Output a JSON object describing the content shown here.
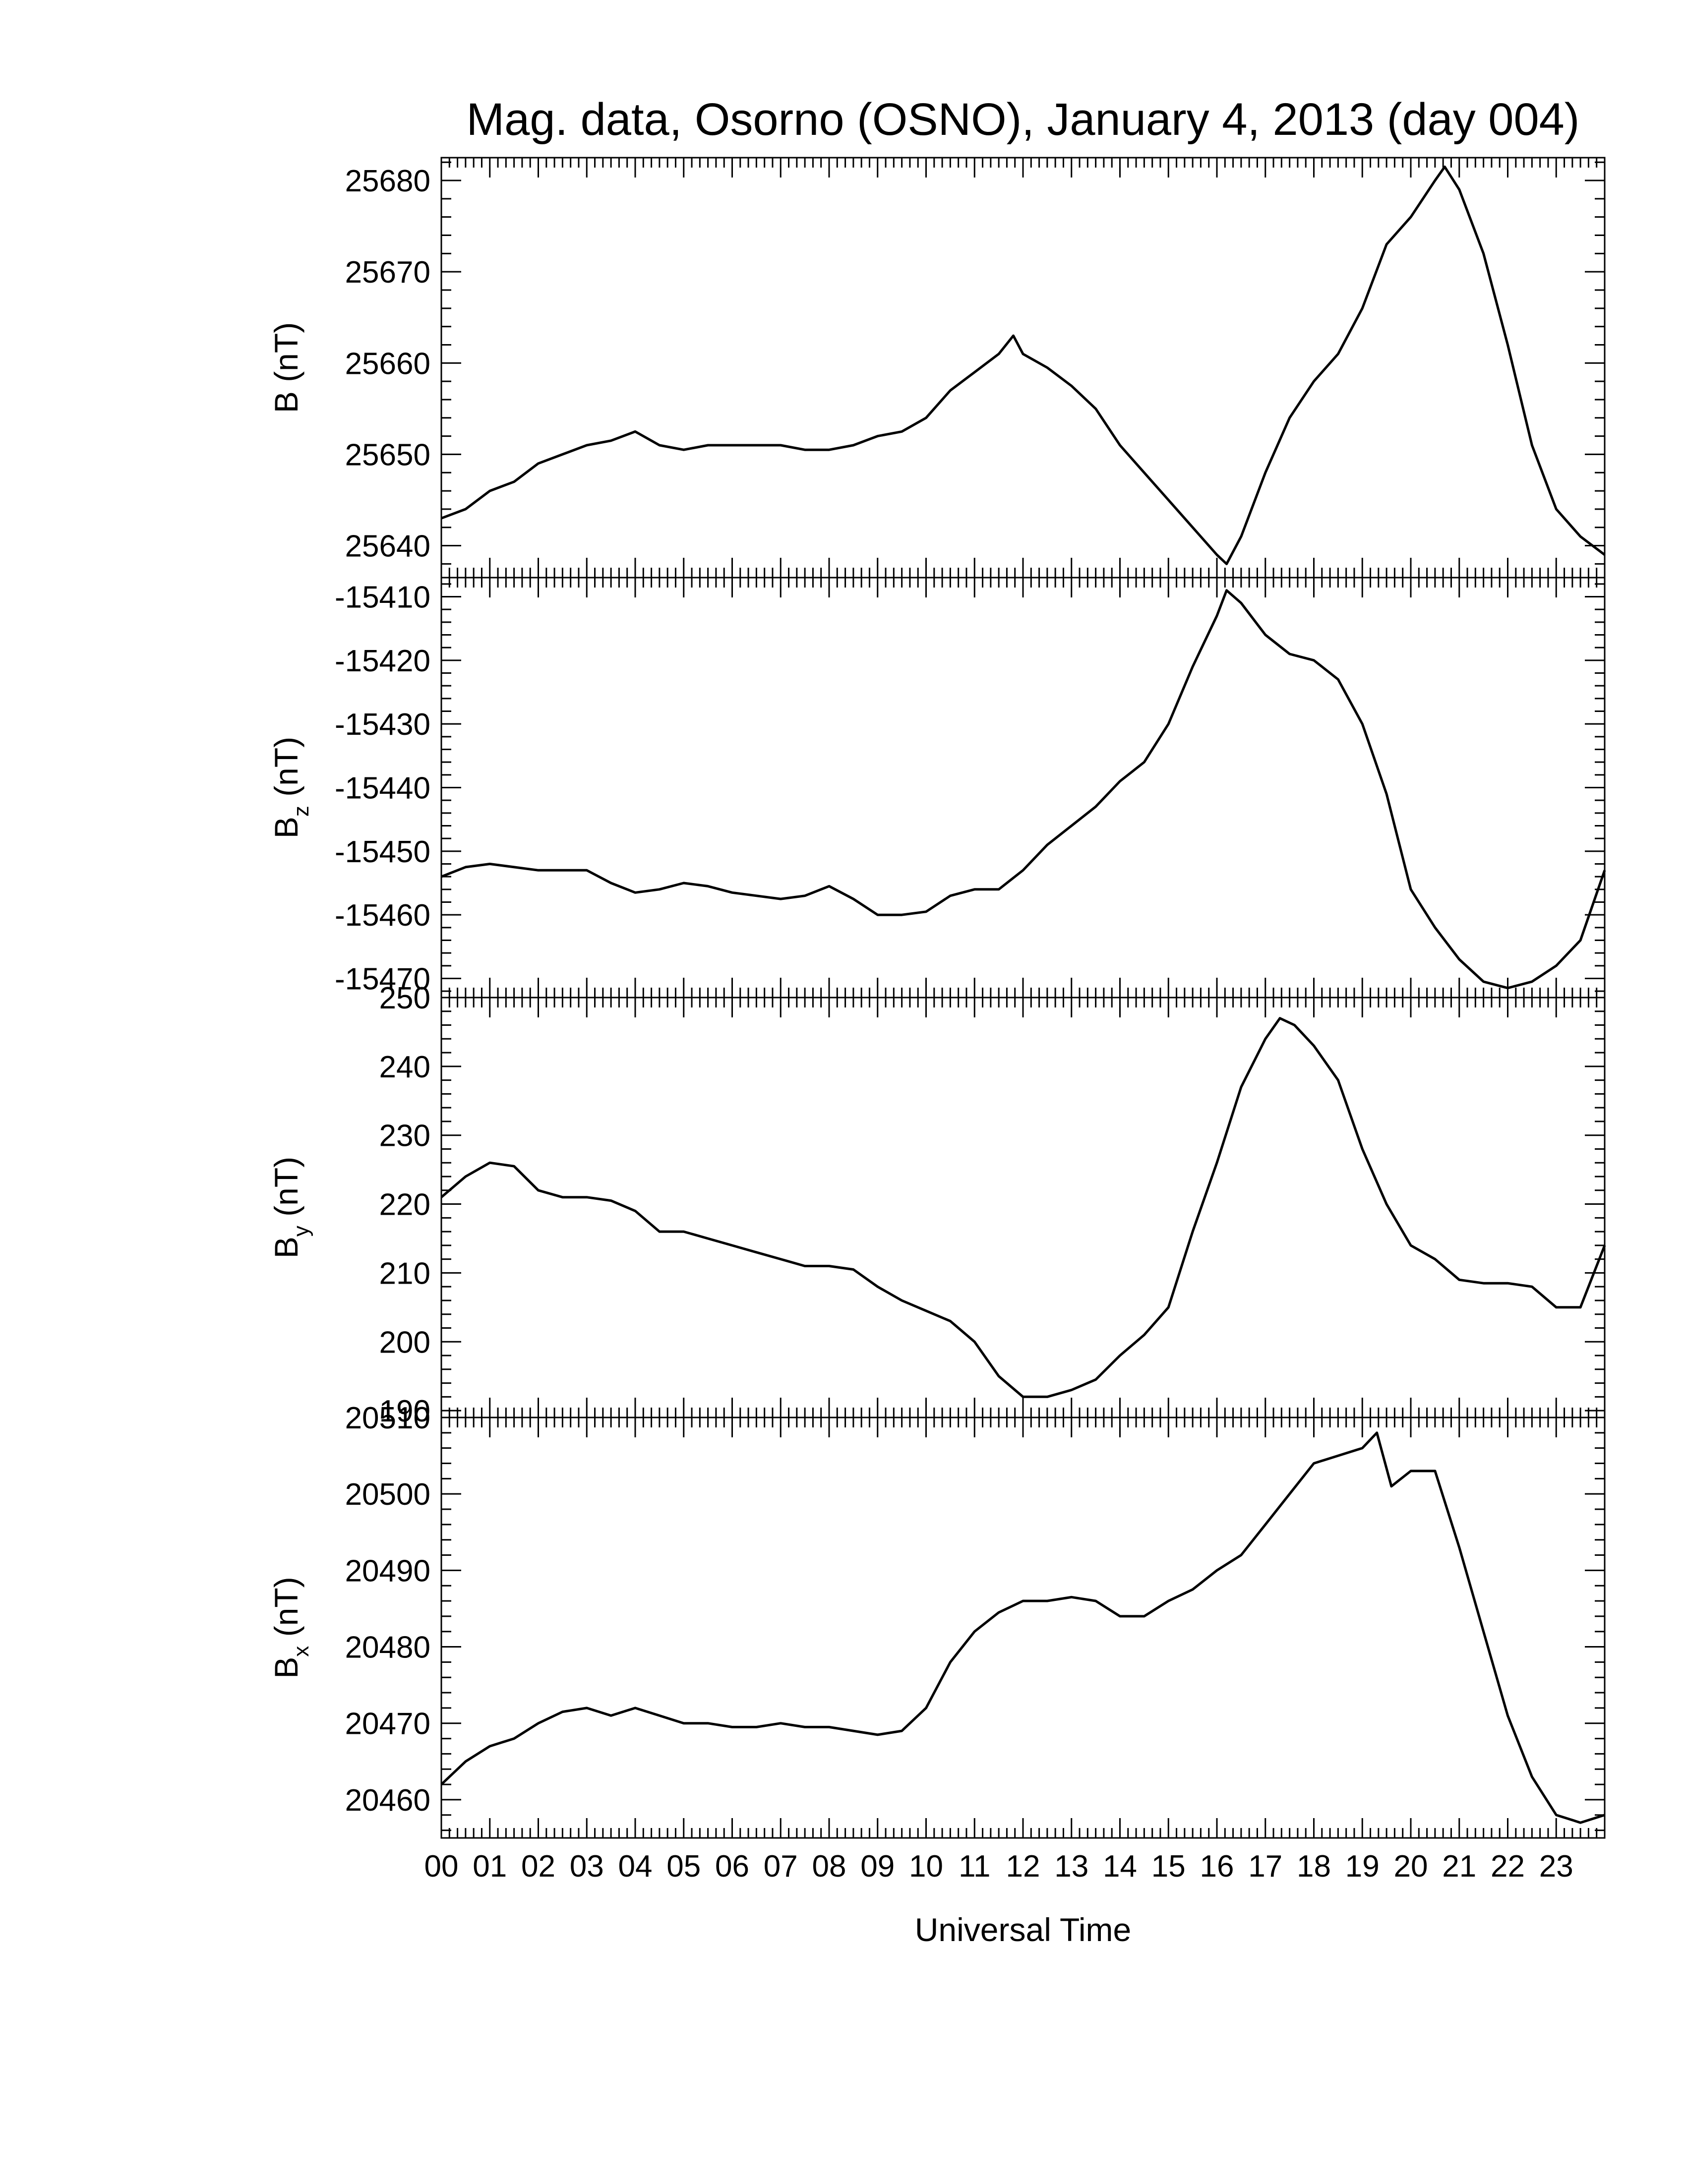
{
  "chart_data": {
    "type": "line",
    "title": "Mag. data, Osorno (OSNO), January 4, 2013 (day 004)",
    "xlabel": "Universal Time",
    "x_tick_labels": [
      "00",
      "01",
      "02",
      "03",
      "04",
      "05",
      "06",
      "07",
      "08",
      "09",
      "10",
      "11",
      "12",
      "13",
      "14",
      "15",
      "16",
      "17",
      "18",
      "19",
      "20",
      "21",
      "22",
      "23"
    ],
    "xlim": [
      0,
      24
    ],
    "line_color": "#000000",
    "grid": false,
    "panels": [
      {
        "ylabel": {
          "main": "B",
          "sub": "",
          "unit": "(nT)"
        },
        "ylim": [
          25636.5,
          25682.5
        ],
        "yticks": [
          25640,
          25650,
          25660,
          25670,
          25680
        ],
        "ytick_labels": [
          "25640",
          "25650",
          "25660",
          "25670",
          "25680"
        ],
        "series": [
          {
            "x": [
              0,
              0.5,
              1,
              1.5,
              2,
              2.5,
              3,
              3.5,
              4,
              4.5,
              5,
              5.5,
              6,
              6.5,
              7,
              7.5,
              8,
              8.5,
              9,
              9.5,
              10,
              10.5,
              11,
              11.5,
              11.8,
              12,
              12.5,
              13,
              13.5,
              14,
              14.5,
              15,
              15.5,
              16,
              16.2,
              16.5,
              17,
              17.5,
              18,
              18.5,
              19,
              19.5,
              20,
              20.5,
              20.7,
              21,
              21.5,
              22,
              22.5,
              23,
              23.5,
              24
            ],
            "y": [
              25643,
              25644,
              25646,
              25647,
              25649,
              25650,
              25651,
              25651.5,
              25652.5,
              25651,
              25650.5,
              25651,
              25651,
              25651,
              25651,
              25650.5,
              25650.5,
              25651,
              25652,
              25652.5,
              25654,
              25657,
              25659,
              25661,
              25663,
              25661,
              25659.5,
              25657.5,
              25655,
              25651,
              25648,
              25645,
              25642,
              25639,
              25638,
              25641,
              25648,
              25654,
              25658,
              25661,
              25666,
              25673,
              25676,
              25680,
              25681.5,
              25679,
              25672,
              25662,
              25651,
              25644,
              25641,
              25639
            ]
          }
        ]
      },
      {
        "ylabel": {
          "main": "B",
          "sub": "z",
          "unit": "(nT)"
        },
        "ylim": [
          -15473,
          -15407
        ],
        "yticks": [
          -15470,
          -15460,
          -15450,
          -15440,
          -15430,
          -15420,
          -15410
        ],
        "ytick_labels": [
          "-15470",
          "-15460",
          "-15450",
          "-15440",
          "-15430",
          "-15420",
          "-15410"
        ],
        "series": [
          {
            "x": [
              0,
              0.5,
              1,
              1.5,
              2,
              2.5,
              3,
              3.5,
              4,
              4.5,
              5,
              5.5,
              6,
              6.5,
              7,
              7.5,
              8,
              8.5,
              9,
              9.5,
              10,
              10.5,
              11,
              11.5,
              12,
              12.5,
              13,
              13.5,
              14,
              14.5,
              15,
              15.5,
              16,
              16.2,
              16.5,
              17,
              17.5,
              18,
              18.5,
              19,
              19.5,
              20,
              20.5,
              21,
              21.5,
              22,
              22.5,
              23,
              23.5,
              24
            ],
            "y": [
              -15454,
              -15452.5,
              -15452,
              -15452.5,
              -15453,
              -15453,
              -15453,
              -15455,
              -15456.5,
              -15456,
              -15455,
              -15455.5,
              -15456.5,
              -15457,
              -15457.5,
              -15457,
              -15455.5,
              -15457.5,
              -15460,
              -15460,
              -15459.5,
              -15457,
              -15456,
              -15456,
              -15453,
              -15449,
              -15446,
              -15443,
              -15439,
              -15436,
              -15430,
              -15421,
              -15413,
              -15409,
              -15411,
              -15416,
              -15419,
              -15420,
              -15423,
              -15430,
              -15441,
              -15456,
              -15462,
              -15467,
              -15470.5,
              -15471.5,
              -15470.5,
              -15468,
              -15464,
              -15453
            ]
          }
        ]
      },
      {
        "ylabel": {
          "main": "B",
          "sub": "y",
          "unit": "(nT)"
        },
        "ylim": [
          189,
          250
        ],
        "yticks": [
          190,
          200,
          210,
          220,
          230,
          240,
          250
        ],
        "ytick_labels": [
          "190",
          "200",
          "210",
          "220",
          "230",
          "240",
          "250"
        ],
        "series": [
          {
            "x": [
              0,
              0.5,
              1,
              1.5,
              2,
              2.5,
              3,
              3.5,
              4,
              4.5,
              5,
              5.5,
              6,
              6.5,
              7,
              7.5,
              8,
              8.5,
              9,
              9.5,
              10,
              10.5,
              11,
              11.5,
              12,
              12.5,
              13,
              13.5,
              14,
              14.5,
              15,
              15.5,
              16,
              16.5,
              17,
              17.3,
              17.6,
              18,
              18.5,
              19,
              19.5,
              20,
              20.5,
              21,
              21.5,
              22,
              22.5,
              23,
              23.5,
              24
            ],
            "y": [
              221,
              224,
              226,
              225.5,
              222,
              221,
              221,
              220.5,
              219,
              216,
              216,
              215,
              214,
              213,
              212,
              211,
              211,
              210.5,
              208,
              206,
              204.5,
              203,
              200,
              195,
              192,
              192,
              193,
              194.5,
              198,
              201,
              205,
              216,
              226,
              237,
              244,
              247,
              246,
              243,
              238,
              228,
              220,
              214,
              212,
              209,
              208.5,
              208.5,
              208,
              205,
              205,
              214
            ]
          }
        ]
      },
      {
        "ylabel": {
          "main": "B",
          "sub": "x",
          "unit": "(nT)"
        },
        "ylim": [
          20455,
          20510
        ],
        "yticks": [
          20460,
          20470,
          20480,
          20490,
          20500,
          20510
        ],
        "ytick_labels": [
          "20460",
          "20470",
          "20480",
          "20490",
          "20500",
          "20510"
        ],
        "series": [
          {
            "x": [
              0,
              0.5,
              1,
              1.5,
              2,
              2.5,
              3,
              3.5,
              4,
              4.5,
              5,
              5.5,
              6,
              6.5,
              7,
              7.5,
              8,
              8.5,
              9,
              9.5,
              10,
              10.5,
              11,
              11.5,
              12,
              12.5,
              13,
              13.5,
              14,
              14.5,
              15,
              15.5,
              16,
              16.5,
              17,
              17.5,
              18,
              18.5,
              19,
              19.3,
              19.6,
              20,
              20.5,
              21,
              21.5,
              22,
              22.5,
              23,
              23.5,
              24
            ],
            "y": [
              20462,
              20465,
              20467,
              20468,
              20470,
              20471.5,
              20472,
              20471,
              20472,
              20471,
              20470,
              20470,
              20469.5,
              20469.5,
              20470,
              20469.5,
              20469.5,
              20469,
              20468.5,
              20469,
              20472,
              20478,
              20482,
              20484.5,
              20486,
              20486,
              20486.5,
              20486,
              20484,
              20484,
              20486,
              20487.5,
              20490,
              20492,
              20496,
              20500,
              20504,
              20505,
              20506,
              20508,
              20501,
              20503,
              20503,
              20493,
              20482,
              20471,
              20463,
              20458,
              20457,
              20458
            ]
          }
        ]
      }
    ]
  }
}
